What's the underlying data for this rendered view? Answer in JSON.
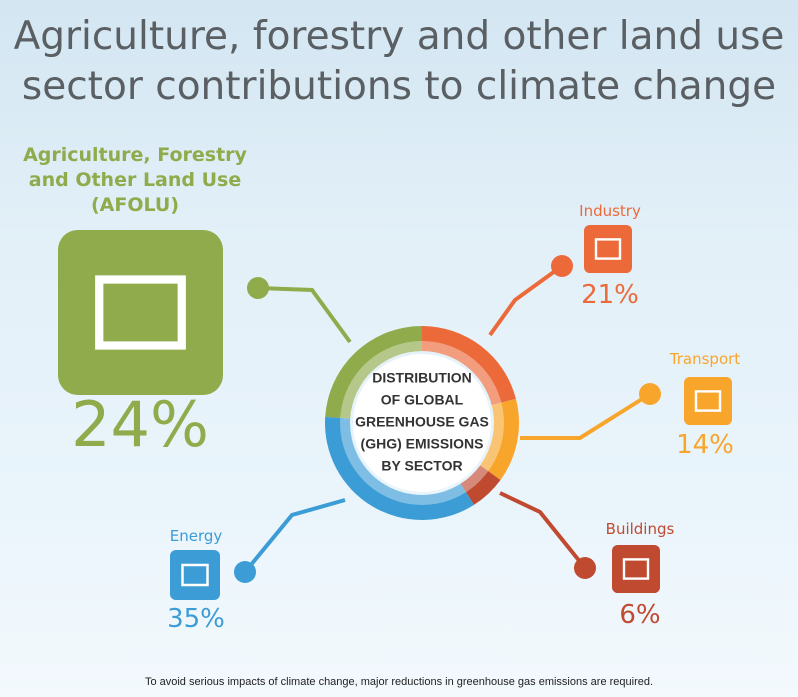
{
  "chart_data": {
    "type": "donut",
    "title": [
      "Agriculture, forestry and other land use",
      "sector contributions to climate change"
    ],
    "center_text": [
      "DISTRIBUTION",
      "OF GLOBAL",
      "GREENHOUSE GAS",
      "(GHG) EMISSIONS",
      "BY  SECTOR"
    ],
    "categories": [
      "Industry",
      "Transport",
      "Buildings",
      "Energy",
      "Agriculture, Forestry and Other Land Use (AFOLU)"
    ],
    "values": [
      21,
      14,
      6,
      35,
      24
    ],
    "value_labels": [
      "21%",
      "14%",
      "6%",
      "35%",
      "24%"
    ],
    "colors": [
      "#ec6a3a",
      "#f8a52b",
      "#c04a30",
      "#3b9cd6",
      "#8fab4b"
    ],
    "footnote": "To avoid serious impacts of climate change, major reductions in greenhouse gas emissions are required."
  }
}
